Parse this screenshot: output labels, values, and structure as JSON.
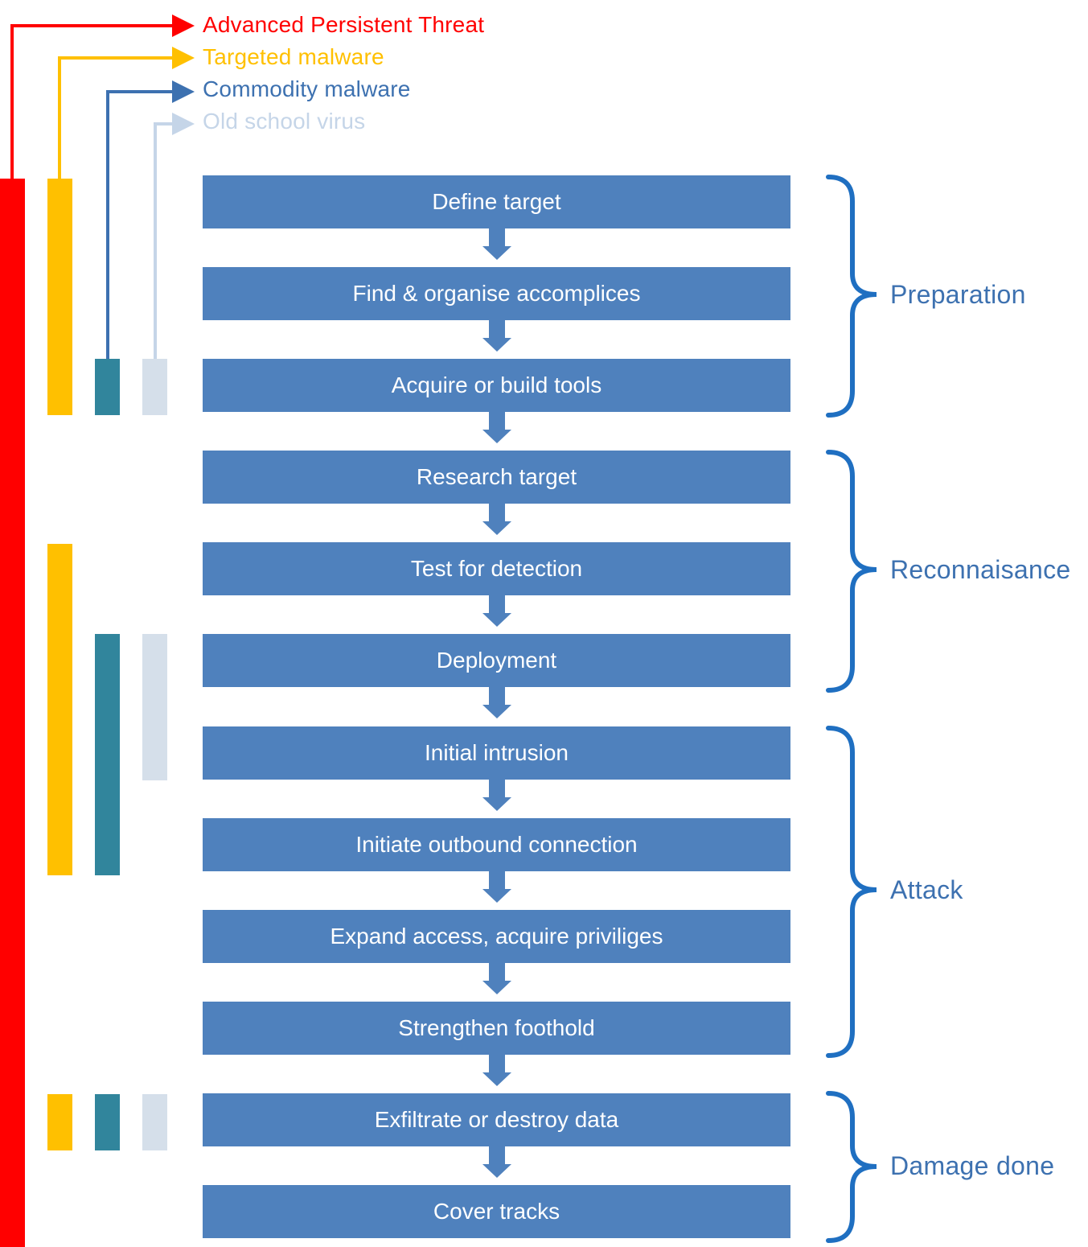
{
  "legend": [
    {
      "label": "Advanced Persistent Threat",
      "color": "#ff0000"
    },
    {
      "label": "Targeted malware",
      "color": "#ffc000"
    },
    {
      "label": "Commodity malware",
      "color": "#3d71b0"
    },
    {
      "label": "Old school virus",
      "color": "#c5d5e8"
    }
  ],
  "steps": [
    {
      "label": "Define target"
    },
    {
      "label": "Find & organise accomplices"
    },
    {
      "label": "Acquire or build tools"
    },
    {
      "label": "Research target"
    },
    {
      "label": "Test for detection"
    },
    {
      "label": "Deployment"
    },
    {
      "label": "Initial intrusion"
    },
    {
      "label": "Initiate outbound connection"
    },
    {
      "label": "Expand access, acquire priviliges"
    },
    {
      "label": "Strengthen foothold"
    },
    {
      "label": "Exfiltrate or destroy data"
    },
    {
      "label": "Cover tracks"
    }
  ],
  "phases": [
    {
      "label": "Preparation"
    },
    {
      "label": "Reconnaisance"
    },
    {
      "label": "Attack"
    },
    {
      "label": "Damage done"
    }
  ],
  "colors": {
    "step_fill": "#4f81bd",
    "phase_brace": "#1f6fc1",
    "phase_text": "#3d71b0",
    "apt_bar": "#ff0000",
    "targeted_bar": "#ffc000",
    "commodity_bar": "#31859c",
    "oldschool_bar": "#d5dfea"
  }
}
